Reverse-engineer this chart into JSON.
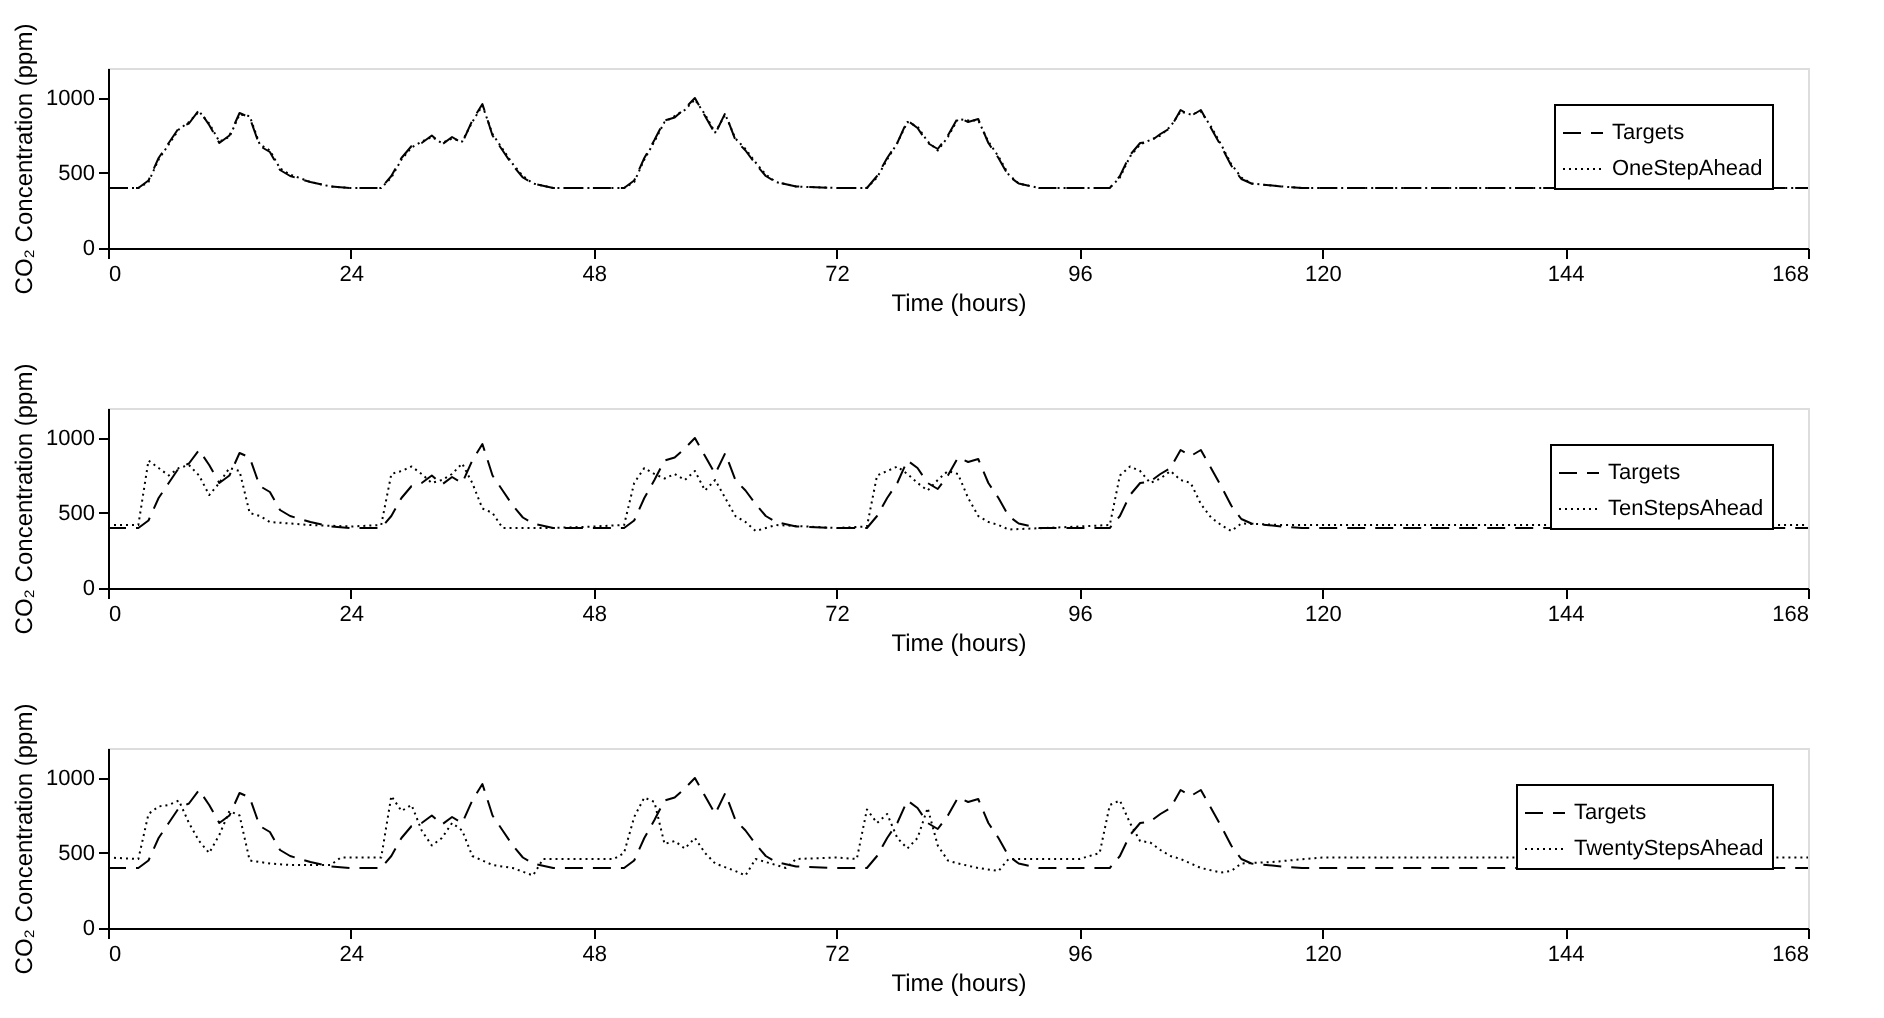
{
  "chart_data": [
    {
      "type": "line",
      "xlabel": "Time (hours)",
      "ylabel": "CO₂ Concentration (ppm)",
      "xlim": [
        0,
        168
      ],
      "xticks": [
        0,
        24,
        48,
        72,
        96,
        120,
        144,
        168
      ],
      "ylim": [
        0,
        1200
      ],
      "yticks": [
        0,
        500,
        1000
      ],
      "grid": false,
      "legend": "top right",
      "series": [
        {
          "name": "Targets",
          "color": "#000000",
          "line_style": "dashed",
          "x": [
            0,
            3,
            4,
            5,
            6,
            7,
            8,
            9,
            10,
            11,
            12,
            13,
            14,
            15,
            16,
            17,
            18,
            20,
            22,
            24,
            27,
            28,
            29,
            30,
            31,
            32,
            33,
            34,
            35,
            36,
            37,
            38,
            39,
            40,
            41,
            42,
            44,
            48,
            51,
            52,
            53,
            54,
            55,
            56,
            57,
            58,
            59,
            60,
            61,
            62,
            63,
            64,
            65,
            66,
            68,
            72,
            75,
            76,
            77,
            78,
            79,
            80,
            81,
            82,
            83,
            84,
            85,
            86,
            87,
            88,
            89,
            90,
            92,
            96,
            99,
            100,
            101,
            102,
            103,
            104,
            105,
            106,
            107,
            108,
            109,
            110,
            111,
            112,
            113,
            116,
            118,
            168
          ],
          "values": [
            400,
            400,
            450,
            600,
            700,
            800,
            830,
            920,
            820,
            700,
            750,
            900,
            870,
            680,
            640,
            520,
            480,
            440,
            410,
            400,
            400,
            480,
            600,
            680,
            700,
            750,
            690,
            740,
            700,
            850,
            960,
            750,
            650,
            550,
            470,
            430,
            400,
            400,
            400,
            450,
            600,
            720,
            850,
            870,
            930,
            1000,
            880,
            760,
            900,
            720,
            650,
            560,
            480,
            440,
            410,
            400,
            400,
            480,
            600,
            700,
            850,
            800,
            700,
            660,
            750,
            870,
            840,
            860,
            700,
            600,
            480,
            430,
            400,
            400,
            400,
            480,
            620,
            700,
            710,
            760,
            800,
            920,
            880,
            920,
            800,
            680,
            550,
            460,
            430,
            410,
            400,
            400
          ]
        },
        {
          "name": "OneStepAhead",
          "color": "#000000",
          "line_style": "dotted",
          "x": [
            0,
            3,
            4,
            5,
            6,
            7,
            8,
            9,
            10,
            11,
            12,
            13,
            14,
            15,
            16,
            17,
            18,
            20,
            22,
            24,
            27,
            28,
            29,
            30,
            31,
            32,
            33,
            34,
            35,
            36,
            37,
            38,
            39,
            40,
            41,
            42,
            44,
            48,
            51,
            52,
            53,
            54,
            55,
            56,
            57,
            58,
            59,
            60,
            61,
            62,
            63,
            64,
            65,
            66,
            68,
            72,
            75,
            76,
            77,
            78,
            79,
            80,
            81,
            82,
            83,
            84,
            85,
            86,
            87,
            88,
            89,
            90,
            92,
            96,
            99,
            100,
            101,
            102,
            103,
            104,
            105,
            106,
            107,
            108,
            109,
            110,
            111,
            112,
            113,
            116,
            118,
            168
          ],
          "values": [
            400,
            400,
            440,
            590,
            690,
            790,
            840,
            910,
            830,
            710,
            740,
            890,
            880,
            690,
            650,
            530,
            490,
            440,
            410,
            400,
            400,
            470,
            590,
            670,
            710,
            740,
            700,
            730,
            710,
            840,
            950,
            760,
            660,
            560,
            480,
            430,
            400,
            400,
            400,
            440,
            590,
            710,
            840,
            880,
            920,
            990,
            890,
            770,
            890,
            730,
            660,
            570,
            490,
            440,
            410,
            400,
            400,
            470,
            590,
            700,
            840,
            810,
            710,
            650,
            740,
            860,
            850,
            850,
            710,
            610,
            490,
            430,
            400,
            400,
            400,
            470,
            610,
            690,
            720,
            750,
            810,
            910,
            890,
            910,
            810,
            690,
            560,
            470,
            430,
            410,
            400,
            400
          ]
        }
      ]
    },
    {
      "type": "line",
      "xlabel": "Time (hours)",
      "ylabel": "CO₂ Concentration (ppm)",
      "xlim": [
        0,
        168
      ],
      "xticks": [
        0,
        24,
        48,
        72,
        96,
        120,
        144,
        168
      ],
      "ylim": [
        0,
        1200
      ],
      "yticks": [
        0,
        500,
        1000
      ],
      "grid": false,
      "legend": "top right",
      "series": [
        {
          "name": "Targets",
          "color": "#000000",
          "line_style": "dashed",
          "x": [
            0,
            3,
            4,
            5,
            6,
            7,
            8,
            9,
            10,
            11,
            12,
            13,
            14,
            15,
            16,
            17,
            18,
            20,
            22,
            24,
            27,
            28,
            29,
            30,
            31,
            32,
            33,
            34,
            35,
            36,
            37,
            38,
            39,
            40,
            41,
            42,
            44,
            48,
            51,
            52,
            53,
            54,
            55,
            56,
            57,
            58,
            59,
            60,
            61,
            62,
            63,
            64,
            65,
            66,
            68,
            72,
            75,
            76,
            77,
            78,
            79,
            80,
            81,
            82,
            83,
            84,
            85,
            86,
            87,
            88,
            89,
            90,
            92,
            96,
            99,
            100,
            101,
            102,
            103,
            104,
            105,
            106,
            107,
            108,
            109,
            110,
            111,
            112,
            113,
            116,
            118,
            168
          ],
          "values": [
            400,
            400,
            450,
            600,
            700,
            800,
            830,
            920,
            820,
            700,
            750,
            900,
            870,
            680,
            640,
            520,
            480,
            440,
            410,
            400,
            400,
            480,
            600,
            680,
            700,
            750,
            690,
            740,
            700,
            850,
            960,
            750,
            650,
            550,
            470,
            430,
            400,
            400,
            400,
            450,
            600,
            720,
            850,
            870,
            930,
            1000,
            880,
            760,
            900,
            720,
            650,
            560,
            480,
            440,
            410,
            400,
            400,
            480,
            600,
            700,
            850,
            800,
            700,
            660,
            750,
            870,
            840,
            860,
            700,
            600,
            480,
            430,
            400,
            400,
            400,
            480,
            620,
            700,
            710,
            760,
            800,
            920,
            880,
            920,
            800,
            680,
            550,
            460,
            430,
            410,
            400,
            400
          ]
        },
        {
          "name": "TenStepsAhead",
          "color": "#000000",
          "line_style": "dotted",
          "x": [
            0,
            3,
            4,
            5,
            6,
            7,
            8,
            9,
            10,
            11,
            12,
            13,
            14,
            15,
            16,
            18,
            20,
            24,
            27,
            28,
            29,
            30,
            31,
            32,
            33,
            34,
            35,
            36,
            37,
            38,
            39,
            41,
            44,
            48,
            51,
            52,
            53,
            54,
            55,
            56,
            57,
            58,
            59,
            60,
            61,
            62,
            63,
            64,
            66,
            72,
            75,
            76,
            77,
            78,
            79,
            80,
            81,
            82,
            83,
            84,
            85,
            86,
            87,
            88,
            89,
            96,
            99,
            100,
            101,
            102,
            103,
            104,
            105,
            106,
            107,
            108,
            109,
            110,
            111,
            112,
            116,
            168
          ],
          "values": [
            420,
            420,
            850,
            800,
            750,
            800,
            820,
            750,
            620,
            700,
            800,
            780,
            500,
            480,
            440,
            430,
            420,
            410,
            420,
            760,
            780,
            810,
            760,
            700,
            720,
            760,
            830,
            700,
            530,
            500,
            400,
            400,
            400,
            410,
            420,
            700,
            800,
            760,
            730,
            760,
            720,
            780,
            650,
            720,
            600,
            480,
            440,
            380,
            420,
            400,
            410,
            750,
            780,
            810,
            760,
            700,
            650,
            720,
            780,
            760,
            600,
            480,
            440,
            420,
            390,
            410,
            420,
            750,
            810,
            780,
            700,
            730,
            780,
            720,
            700,
            560,
            470,
            420,
            380,
            430,
            420,
            420
          ]
        }
      ]
    },
    {
      "type": "line",
      "xlabel": "Time (hours)",
      "ylabel": "CO₂ Concentration (ppm)",
      "xlim": [
        0,
        168
      ],
      "xticks": [
        0,
        24,
        48,
        72,
        96,
        120,
        144,
        168
      ],
      "ylim": [
        0,
        1200
      ],
      "yticks": [
        0,
        500,
        1000
      ],
      "grid": false,
      "legend": "top right",
      "series": [
        {
          "name": "Targets",
          "color": "#000000",
          "line_style": "dashed",
          "x": [
            0,
            3,
            4,
            5,
            6,
            7,
            8,
            9,
            10,
            11,
            12,
            13,
            14,
            15,
            16,
            17,
            18,
            20,
            22,
            24,
            27,
            28,
            29,
            30,
            31,
            32,
            33,
            34,
            35,
            36,
            37,
            38,
            39,
            40,
            41,
            42,
            44,
            48,
            51,
            52,
            53,
            54,
            55,
            56,
            57,
            58,
            59,
            60,
            61,
            62,
            63,
            64,
            65,
            66,
            68,
            72,
            75,
            76,
            77,
            78,
            79,
            80,
            81,
            82,
            83,
            84,
            85,
            86,
            87,
            88,
            89,
            90,
            92,
            96,
            99,
            100,
            101,
            102,
            103,
            104,
            105,
            106,
            107,
            108,
            109,
            110,
            111,
            112,
            113,
            116,
            118,
            168
          ],
          "values": [
            400,
            400,
            450,
            600,
            700,
            800,
            830,
            920,
            820,
            700,
            750,
            900,
            870,
            680,
            640,
            520,
            480,
            440,
            410,
            400,
            400,
            480,
            600,
            680,
            700,
            750,
            690,
            740,
            700,
            850,
            960,
            750,
            650,
            550,
            470,
            430,
            400,
            400,
            400,
            450,
            600,
            720,
            850,
            870,
            930,
            1000,
            880,
            760,
            900,
            720,
            650,
            560,
            480,
            440,
            410,
            400,
            400,
            480,
            600,
            700,
            850,
            800,
            700,
            660,
            750,
            870,
            840,
            860,
            700,
            600,
            480,
            430,
            400,
            400,
            400,
            480,
            620,
            700,
            710,
            760,
            800,
            920,
            880,
            920,
            800,
            680,
            550,
            460,
            430,
            410,
            400,
            400
          ]
        },
        {
          "name": "TwentyStepsAhead",
          "color": "#000000",
          "line_style": "dotted",
          "x": [
            0,
            3,
            4,
            5,
            6,
            7,
            8,
            9,
            10,
            11,
            12,
            13,
            14,
            16,
            18,
            20,
            22,
            23,
            27,
            28,
            29,
            30,
            31,
            32,
            33,
            34,
            35,
            36,
            37,
            38,
            40,
            42,
            43,
            50,
            51,
            52,
            53,
            54,
            55,
            56,
            57,
            58,
            59,
            60,
            62,
            63,
            64,
            66,
            67,
            68,
            72,
            74,
            75,
            76,
            77,
            78,
            79,
            80,
            81,
            82,
            83,
            84,
            86,
            88,
            89,
            96,
            98,
            99,
            100,
            101,
            102,
            103,
            104,
            105,
            106,
            108,
            110,
            111,
            112,
            115,
            120,
            168
          ],
          "values": [
            470,
            460,
            760,
            810,
            820,
            850,
            700,
            580,
            500,
            620,
            780,
            750,
            450,
            430,
            420,
            420,
            420,
            470,
            470,
            880,
            780,
            820,
            650,
            550,
            600,
            700,
            650,
            480,
            450,
            420,
            400,
            350,
            460,
            460,
            500,
            740,
            870,
            840,
            560,
            580,
            530,
            600,
            500,
            430,
            380,
            350,
            460,
            420,
            400,
            460,
            470,
            460,
            790,
            700,
            760,
            600,
            530,
            600,
            800,
            550,
            450,
            430,
            400,
            380,
            460,
            460,
            500,
            820,
            850,
            700,
            580,
            570,
            520,
            480,
            460,
            400,
            370,
            380,
            430,
            440,
            470,
            470
          ]
        }
      ]
    }
  ]
}
